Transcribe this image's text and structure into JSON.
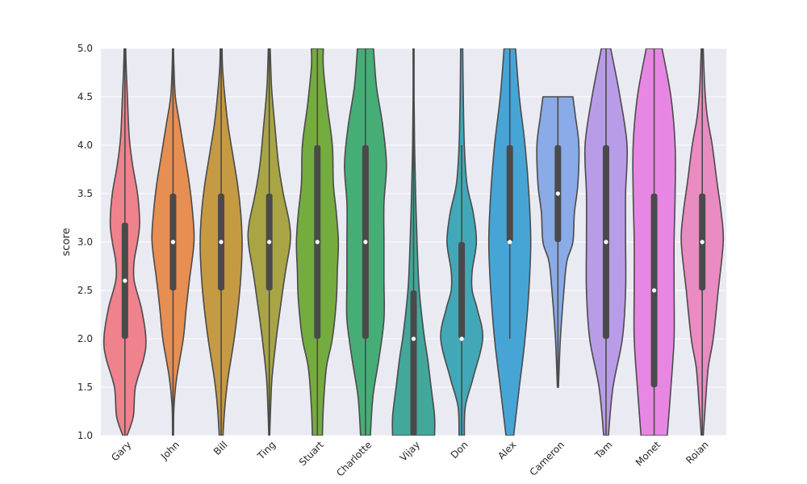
{
  "chart_data": {
    "type": "violin",
    "title": "",
    "xlabel": "",
    "ylabel": "score",
    "ylim": [
      1.0,
      5.0
    ],
    "yticks": [
      "1.0",
      "1.5",
      "2.0",
      "2.5",
      "3.0",
      "3.5",
      "4.0",
      "4.5",
      "5.0"
    ],
    "grid": true,
    "series": [
      {
        "name": "Gary",
        "color": "#f0828d",
        "density": [
          [
            1.0,
            0.05
          ],
          [
            1.2,
            0.2
          ],
          [
            1.5,
            0.25
          ],
          [
            1.8,
            0.45
          ],
          [
            2.0,
            0.5
          ],
          [
            2.3,
            0.4
          ],
          [
            2.6,
            0.22
          ],
          [
            2.8,
            0.22
          ],
          [
            3.0,
            0.3
          ],
          [
            3.2,
            0.35
          ],
          [
            3.5,
            0.3
          ],
          [
            3.8,
            0.18
          ],
          [
            4.1,
            0.1
          ],
          [
            4.5,
            0.06
          ],
          [
            4.8,
            0.03
          ],
          [
            5.0,
            0.02
          ]
        ],
        "whisker": [
          1.0,
          5.0
        ],
        "q1": 2.0,
        "median": 2.6,
        "q3": 3.2
      },
      {
        "name": "John",
        "color": "#e78e53",
        "density": [
          [
            1.0,
            0.01
          ],
          [
            1.3,
            0.02
          ],
          [
            1.6,
            0.08
          ],
          [
            2.0,
            0.22
          ],
          [
            2.3,
            0.28
          ],
          [
            2.6,
            0.35
          ],
          [
            3.0,
            0.45
          ],
          [
            3.3,
            0.42
          ],
          [
            3.6,
            0.35
          ],
          [
            3.9,
            0.25
          ],
          [
            4.2,
            0.15
          ],
          [
            4.5,
            0.05
          ],
          [
            4.8,
            0.02
          ],
          [
            5.0,
            0.01
          ]
        ],
        "whisker": [
          1.0,
          5.0
        ],
        "q1": 2.5,
        "median": 3.0,
        "q3": 3.5
      },
      {
        "name": "Bill",
        "color": "#c59a43",
        "density": [
          [
            1.0,
            0.04
          ],
          [
            1.3,
            0.08
          ],
          [
            1.6,
            0.15
          ],
          [
            2.0,
            0.28
          ],
          [
            2.4,
            0.38
          ],
          [
            2.7,
            0.43
          ],
          [
            3.0,
            0.45
          ],
          [
            3.3,
            0.42
          ],
          [
            3.6,
            0.35
          ],
          [
            3.9,
            0.25
          ],
          [
            4.2,
            0.15
          ],
          [
            4.5,
            0.08
          ],
          [
            4.8,
            0.03
          ],
          [
            5.0,
            0.02
          ]
        ],
        "whisker": [
          1.0,
          5.0
        ],
        "q1": 2.5,
        "median": 3.0,
        "q3": 3.5
      },
      {
        "name": "Ting",
        "color": "#a9a545",
        "density": [
          [
            1.0,
            0.01
          ],
          [
            1.3,
            0.03
          ],
          [
            1.6,
            0.06
          ],
          [
            2.0,
            0.15
          ],
          [
            2.4,
            0.26
          ],
          [
            2.7,
            0.35
          ],
          [
            3.0,
            0.45
          ],
          [
            3.2,
            0.43
          ],
          [
            3.5,
            0.3
          ],
          [
            3.8,
            0.2
          ],
          [
            4.2,
            0.12
          ],
          [
            4.6,
            0.05
          ],
          [
            5.0,
            0.02
          ]
        ],
        "whisker": [
          1.0,
          5.0
        ],
        "q1": 2.5,
        "median": 3.0,
        "q3": 3.5
      },
      {
        "name": "Stuart",
        "color": "#75ac40",
        "density": [
          [
            1.0,
            0.1
          ],
          [
            1.3,
            0.12
          ],
          [
            1.7,
            0.18
          ],
          [
            2.0,
            0.3
          ],
          [
            2.4,
            0.38
          ],
          [
            2.7,
            0.4
          ],
          [
            3.0,
            0.42
          ],
          [
            3.3,
            0.38
          ],
          [
            3.6,
            0.32
          ],
          [
            4.0,
            0.3
          ],
          [
            4.4,
            0.2
          ],
          [
            4.8,
            0.12
          ],
          [
            5.0,
            0.12
          ]
        ],
        "whisker": [
          1.0,
          5.0
        ],
        "q1": 2.0,
        "median": 3.0,
        "q3": 4.0
      },
      {
        "name": "Charlotte",
        "color": "#47ad77",
        "density": [
          [
            1.0,
            0.08
          ],
          [
            1.4,
            0.12
          ],
          [
            1.8,
            0.22
          ],
          [
            2.2,
            0.3
          ],
          [
            2.6,
            0.3
          ],
          [
            3.0,
            0.3
          ],
          [
            3.4,
            0.3
          ],
          [
            3.8,
            0.34
          ],
          [
            4.2,
            0.28
          ],
          [
            4.6,
            0.18
          ],
          [
            5.0,
            0.13
          ]
        ],
        "whisker": [
          1.0,
          5.0
        ],
        "q1": 2.0,
        "median": 3.0,
        "q3": 4.0
      },
      {
        "name": "Vijay",
        "color": "#41a89b",
        "density": [
          [
            1.0,
            0.42
          ],
          [
            1.2,
            0.42
          ],
          [
            1.5,
            0.35
          ],
          [
            1.8,
            0.28
          ],
          [
            2.0,
            0.22
          ],
          [
            2.3,
            0.15
          ],
          [
            2.6,
            0.1
          ],
          [
            3.0,
            0.07
          ],
          [
            3.5,
            0.04
          ],
          [
            4.0,
            0.02
          ],
          [
            4.5,
            0.01
          ],
          [
            5.0,
            0.01
          ]
        ],
        "whisker": [
          1.0,
          5.0
        ],
        "q1": 1.0,
        "median": 2.0,
        "q3": 2.5
      },
      {
        "name": "Don",
        "color": "#42a8b8",
        "density": [
          [
            1.0,
            0.05
          ],
          [
            1.3,
            0.07
          ],
          [
            1.6,
            0.22
          ],
          [
            2.0,
            0.4
          ],
          [
            2.3,
            0.3
          ],
          [
            2.5,
            0.2
          ],
          [
            2.7,
            0.2
          ],
          [
            3.0,
            0.28
          ],
          [
            3.3,
            0.22
          ],
          [
            3.6,
            0.1
          ],
          [
            4.0,
            0.05
          ],
          [
            4.5,
            0.03
          ],
          [
            5.0,
            0.02
          ]
        ],
        "whisker": [
          1.0,
          4.0
        ],
        "q1": 2.0,
        "median": 2.0,
        "q3": 3.0
      },
      {
        "name": "Alex",
        "color": "#47a5d6",
        "density": [
          [
            1.0,
            0.1
          ],
          [
            1.5,
            0.25
          ],
          [
            2.0,
            0.4
          ],
          [
            2.5,
            0.5
          ],
          [
            3.0,
            0.55
          ],
          [
            3.5,
            0.5
          ],
          [
            4.0,
            0.4
          ],
          [
            4.5,
            0.25
          ],
          [
            5.0,
            0.15
          ]
        ],
        "whisker": [
          2.0,
          5.0
        ],
        "q1": 3.0,
        "median": 3.0,
        "q3": 4.0
      },
      {
        "name": "Cameron",
        "color": "#8aabe8",
        "density": [
          [
            1.5,
            0.01
          ],
          [
            2.0,
            0.05
          ],
          [
            2.5,
            0.12
          ],
          [
            2.8,
            0.18
          ],
          [
            3.0,
            0.3
          ],
          [
            3.3,
            0.33
          ],
          [
            3.6,
            0.4
          ],
          [
            4.0,
            0.42
          ],
          [
            4.3,
            0.35
          ],
          [
            4.5,
            0.3
          ]
        ],
        "whisker": [
          1.5,
          4.5
        ],
        "q1": 3.0,
        "median": 3.5,
        "q3": 4.0
      },
      {
        "name": "Tam",
        "color": "#b99ce8",
        "density": [
          [
            1.0,
            0.05
          ],
          [
            1.5,
            0.15
          ],
          [
            2.0,
            0.35
          ],
          [
            2.5,
            0.42
          ],
          [
            3.0,
            0.42
          ],
          [
            3.5,
            0.42
          ],
          [
            4.0,
            0.45
          ],
          [
            4.5,
            0.3
          ],
          [
            5.0,
            0.1
          ]
        ],
        "whisker": [
          1.0,
          5.0
        ],
        "q1": 2.0,
        "median": 3.0,
        "q3": 4.0
      },
      {
        "name": "Monet",
        "color": "#e887e3",
        "density": [
          [
            1.0,
            0.25
          ],
          [
            1.5,
            0.32
          ],
          [
            2.0,
            0.38
          ],
          [
            2.5,
            0.38
          ],
          [
            3.0,
            0.38
          ],
          [
            3.5,
            0.4
          ],
          [
            4.0,
            0.4
          ],
          [
            4.5,
            0.32
          ],
          [
            5.0,
            0.15
          ]
        ],
        "whisker": [
          1.0,
          5.0
        ],
        "q1": 1.5,
        "median": 2.5,
        "q3": 3.5
      },
      {
        "name": "Roian",
        "color": "#e88cc1",
        "density": [
          [
            1.0,
            0.02
          ],
          [
            1.3,
            0.06
          ],
          [
            1.7,
            0.12
          ],
          [
            2.0,
            0.22
          ],
          [
            2.5,
            0.32
          ],
          [
            3.0,
            0.42
          ],
          [
            3.3,
            0.38
          ],
          [
            3.6,
            0.3
          ],
          [
            4.0,
            0.2
          ],
          [
            4.3,
            0.1
          ],
          [
            4.6,
            0.05
          ],
          [
            5.0,
            0.02
          ]
        ],
        "whisker": [
          1.0,
          5.0
        ],
        "q1": 2.5,
        "median": 3.0,
        "q3": 3.5
      }
    ]
  }
}
